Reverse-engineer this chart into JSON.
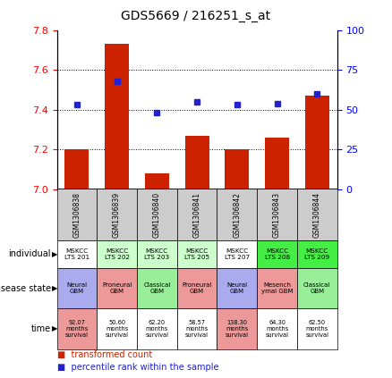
{
  "title": "GDS5669 / 216251_s_at",
  "samples": [
    "GSM1306838",
    "GSM1306839",
    "GSM1306840",
    "GSM1306841",
    "GSM1306842",
    "GSM1306843",
    "GSM1306844"
  ],
  "bar_values": [
    7.2,
    7.73,
    7.08,
    7.27,
    7.2,
    7.26,
    7.47
  ],
  "dot_values": [
    53,
    68,
    48,
    55,
    53,
    54,
    60
  ],
  "ylim_left": [
    7.0,
    7.8
  ],
  "ylim_right": [
    0,
    100
  ],
  "yticks_left": [
    7.0,
    7.2,
    7.4,
    7.6,
    7.8
  ],
  "yticks_right": [
    0,
    25,
    50,
    75,
    100
  ],
  "individual_labels": [
    "MSKCC\nLTS 201",
    "MSKCC\nLTS 202",
    "MSKCC\nLTS 203",
    "MSKCC\nLTS 205",
    "MSKCC\nLTS 207",
    "MSKCC\nLTS 208",
    "MSKCC\nLTS 209"
  ],
  "individual_colors": [
    "#ffffff",
    "#ccffcc",
    "#ccffcc",
    "#ccffcc",
    "#ffffff",
    "#44ee44",
    "#44ee44"
  ],
  "disease_labels": [
    "Neural\nGBM",
    "Proneural\nGBM",
    "Classical\nGBM",
    "Proneural\nGBM",
    "Neural\nGBM",
    "Mesench\nymal GBM",
    "Classical\nGBM"
  ],
  "disease_colors": [
    "#aaaaee",
    "#ee9999",
    "#99ee99",
    "#ee9999",
    "#aaaaee",
    "#ee9999",
    "#99ee99"
  ],
  "time_labels": [
    "92.07\nmonths\nsurvival",
    "50.60\nmonths\nsurvival",
    "62.20\nmonths\nsurvival",
    "58.57\nmonths\nsurvival",
    "138.30\nmonths\nsurvival",
    "64.30\nmonths\nsurvival",
    "62.50\nmonths\nsurvival"
  ],
  "time_colors": [
    "#ee9999",
    "#ffffff",
    "#ffffff",
    "#ffffff",
    "#ee9999",
    "#ffffff",
    "#ffffff"
  ],
  "bar_color": "#cc2200",
  "dot_color": "#2222cc",
  "legend_bar_label": "transformed count",
  "legend_dot_label": "percentile rank within the sample",
  "row_labels": [
    "individual",
    "disease state",
    "time"
  ],
  "sample_header_bg": "#cccccc"
}
